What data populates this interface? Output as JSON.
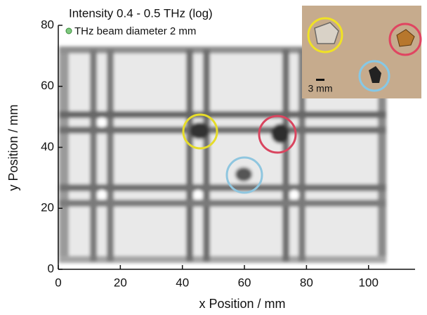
{
  "chart_data": {
    "type": "image",
    "title": "Intensity 0.4 - 0.5 THz (log)",
    "legend": "THz beam diameter 2 mm",
    "inset_scale_label": "3 mm",
    "xlabel": "x Position / mm",
    "ylabel": "y Position / mm",
    "xlim": [
      0,
      115
    ],
    "ylim": [
      0,
      80
    ],
    "xticks": [
      0,
      20,
      40,
      60,
      80,
      100
    ],
    "yticks": [
      0,
      20,
      40,
      60,
      80
    ]
  }
}
